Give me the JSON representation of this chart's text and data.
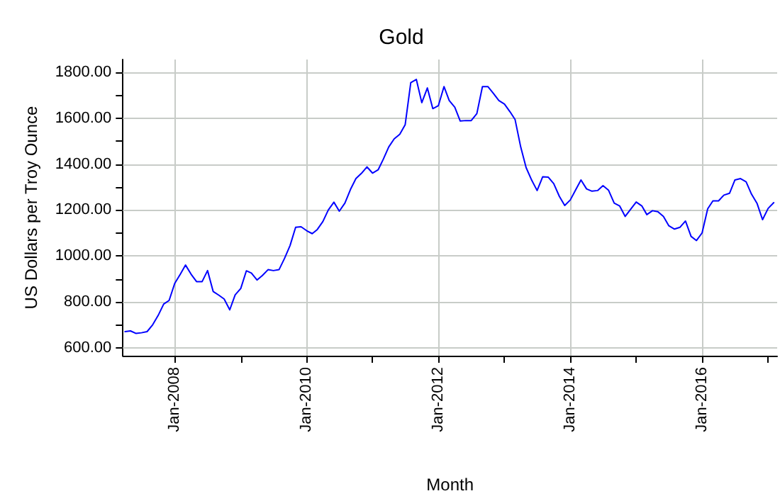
{
  "chart_data": {
    "type": "line",
    "title": "Gold",
    "xlabel": "Month",
    "ylabel": "US Dollars per Troy Ounce",
    "x": [
      "2007-04",
      "2007-05",
      "2007-06",
      "2007-07",
      "2007-08",
      "2007-09",
      "2007-10",
      "2007-11",
      "2007-12",
      "2008-01",
      "2008-02",
      "2008-03",
      "2008-04",
      "2008-05",
      "2008-06",
      "2008-07",
      "2008-08",
      "2008-09",
      "2008-10",
      "2008-11",
      "2008-12",
      "2009-01",
      "2009-02",
      "2009-03",
      "2009-04",
      "2009-05",
      "2009-06",
      "2009-07",
      "2009-08",
      "2009-09",
      "2009-10",
      "2009-11",
      "2009-12",
      "2010-01",
      "2010-02",
      "2010-03",
      "2010-04",
      "2010-05",
      "2010-06",
      "2010-07",
      "2010-08",
      "2010-09",
      "2010-10",
      "2010-11",
      "2010-12",
      "2011-01",
      "2011-02",
      "2011-03",
      "2011-04",
      "2011-05",
      "2011-06",
      "2011-07",
      "2011-08",
      "2011-09",
      "2011-10",
      "2011-11",
      "2011-12",
      "2012-01",
      "2012-02",
      "2012-03",
      "2012-04",
      "2012-05",
      "2012-06",
      "2012-07",
      "2012-08",
      "2012-09",
      "2012-10",
      "2012-11",
      "2012-12",
      "2013-01",
      "2013-02",
      "2013-03",
      "2013-04",
      "2013-05",
      "2013-06",
      "2013-07",
      "2013-08",
      "2013-09",
      "2013-10",
      "2013-11",
      "2013-12",
      "2014-01",
      "2014-02",
      "2014-03",
      "2014-04",
      "2014-05",
      "2014-06",
      "2014-07",
      "2014-08",
      "2014-09",
      "2014-10",
      "2014-11",
      "2014-12",
      "2015-01",
      "2015-02",
      "2015-03",
      "2015-04",
      "2015-05",
      "2015-06",
      "2015-07",
      "2015-08",
      "2015-09",
      "2015-10",
      "2015-11",
      "2015-12",
      "2016-01",
      "2016-02",
      "2016-03",
      "2016-04",
      "2016-05",
      "2016-06",
      "2016-07",
      "2016-08",
      "2016-09",
      "2016-10",
      "2016-11",
      "2016-12",
      "2017-01",
      "2017-02"
    ],
    "series": [
      {
        "color": "#0000ff",
        "values": [
          670,
          673,
          662,
          665,
          670,
          700,
          740,
          790,
          806,
          880,
          920,
          960,
          920,
          888,
          888,
          936,
          845,
          829,
          812,
          765,
          830,
          858,
          935,
          925,
          895,
          915,
          940,
          936,
          940,
          990,
          1045,
          1125,
          1127,
          1110,
          1097,
          1115,
          1150,
          1200,
          1234,
          1195,
          1230,
          1290,
          1337,
          1360,
          1388,
          1361,
          1375,
          1420,
          1475,
          1510,
          1530,
          1572,
          1755,
          1769,
          1668,
          1732,
          1642,
          1655,
          1738,
          1677,
          1648,
          1588,
          1590,
          1590,
          1620,
          1738,
          1738,
          1708,
          1677,
          1662,
          1628,
          1594,
          1475,
          1385,
          1330,
          1285,
          1345,
          1343,
          1315,
          1260,
          1220,
          1244,
          1290,
          1331,
          1292,
          1282,
          1285,
          1306,
          1286,
          1230,
          1218,
          1172,
          1203,
          1235,
          1218,
          1180,
          1197,
          1193,
          1172,
          1131,
          1117,
          1125,
          1152,
          1085,
          1067,
          1100,
          1205,
          1240,
          1240,
          1265,
          1273,
          1331,
          1337,
          1323,
          1269,
          1228,
          1158,
          1207,
          1232
        ]
      }
    ],
    "xlim": [
      "2007-03-20",
      "2017-02-20"
    ],
    "xticks": [
      {
        "value": "2008-01",
        "label": "Jan-2008"
      },
      {
        "value": "2009-01",
        "label": null
      },
      {
        "value": "2010-01",
        "label": "Jan-2010"
      },
      {
        "value": "2011-01",
        "label": null
      },
      {
        "value": "2012-01",
        "label": "Jan-2012"
      },
      {
        "value": "2013-01",
        "label": null
      },
      {
        "value": "2014-01",
        "label": "Jan-2014"
      },
      {
        "value": "2015-01",
        "label": null
      },
      {
        "value": "2016-01",
        "label": "Jan-2016"
      },
      {
        "value": "2017-01",
        "label": null
      }
    ],
    "ylim": [
      565,
      1856
    ],
    "yticks": [
      {
        "value": 600,
        "label": "600.00"
      },
      {
        "value": 700,
        "label": null
      },
      {
        "value": 800,
        "label": "800.00"
      },
      {
        "value": 900,
        "label": null
      },
      {
        "value": 1000,
        "label": "1000.00"
      },
      {
        "value": 1100,
        "label": null
      },
      {
        "value": 1200,
        "label": "1200.00"
      },
      {
        "value": 1300,
        "label": null
      },
      {
        "value": 1400,
        "label": "1400.00"
      },
      {
        "value": 1500,
        "label": null
      },
      {
        "value": 1600,
        "label": "1600.00"
      },
      {
        "value": 1700,
        "label": null
      },
      {
        "value": 1800,
        "label": "1800.00"
      }
    ],
    "grid": true,
    "marker": "none",
    "line_style": "solid"
  }
}
